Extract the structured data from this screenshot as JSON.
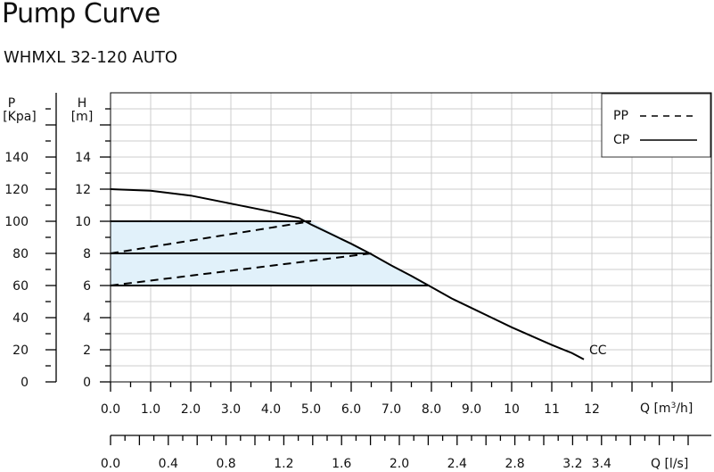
{
  "header": {
    "title": "Pump Curve",
    "subtitle": "WHMXL 32-120 AUTO"
  },
  "colors": {
    "grid": "#cccccc",
    "axis": "#000000",
    "band_fill": "#e1f1fa",
    "curve": "#000000"
  },
  "chart_data": {
    "type": "line",
    "title": "Pump Curve",
    "subtitle": "WHMXL 32-120 AUTO",
    "grid": true,
    "legend_placement": "top-right",
    "axes": {
      "x": {
        "label": "Q [m³/h]",
        "range": [
          0,
          14
        ],
        "ticks": [
          "0.0",
          "1.0",
          "2.0",
          "3.0",
          "4.0",
          "5.0",
          "6.0",
          "7.0",
          "8.0",
          "9.0",
          "10",
          "11",
          "12"
        ]
      },
      "x_secondary": {
        "label": "Q [l/s]",
        "range": [
          0,
          3.8889
        ],
        "ticks": [
          "0.0",
          "0.4",
          "0.8",
          "1.2",
          "1.6",
          "2.0",
          "2.4",
          "2.8",
          "3.2",
          "3.4"
        ]
      },
      "y": {
        "label": "H [m]",
        "range": [
          0,
          18
        ],
        "ticks": [
          "0",
          "2",
          "4",
          "6",
          "8",
          "10",
          "12",
          "14"
        ]
      },
      "y_pressure": {
        "label": "P [Kpa]",
        "range": [
          0,
          180
        ],
        "ticks": [
          "0",
          "20",
          "40",
          "60",
          "80",
          "100",
          "120",
          "140"
        ]
      }
    },
    "legend": [
      {
        "name": "PP",
        "style": "dashed"
      },
      {
        "name": "CP",
        "style": "solid"
      }
    ],
    "series": [
      {
        "name": "CC",
        "style": "solid",
        "x": [
          0,
          1,
          2,
          3,
          4,
          4.7,
          5.0,
          5.5,
          6.0,
          6.5,
          7.0,
          7.5,
          8.0,
          8.5,
          9.0,
          9.5,
          10.0,
          10.5,
          11.0,
          11.5,
          11.8
        ],
        "y": [
          12.0,
          11.9,
          11.6,
          11.1,
          10.6,
          10.2,
          9.8,
          9.2,
          8.6,
          7.95,
          7.25,
          6.6,
          5.9,
          5.2,
          4.6,
          4.0,
          3.4,
          2.85,
          2.3,
          1.8,
          1.4
        ]
      },
      {
        "name": "PP-1",
        "style": "dashed",
        "x": [
          0,
          5.0
        ],
        "y": [
          8.0,
          10.0
        ]
      },
      {
        "name": "PP-2",
        "style": "dashed",
        "x": [
          0,
          6.5
        ],
        "y": [
          6.0,
          8.0
        ]
      },
      {
        "name": "CP-1",
        "style": "solid",
        "x": [
          0,
          5.0
        ],
        "y": [
          10.0,
          10.0
        ]
      },
      {
        "name": "CP-2",
        "style": "solid",
        "x": [
          0,
          6.5
        ],
        "y": [
          8.0,
          8.0
        ]
      },
      {
        "name": "CP-3",
        "style": "solid",
        "x": [
          0,
          7.95
        ],
        "y": [
          6.0,
          6.0
        ]
      }
    ],
    "shaded_region": {
      "x": [
        0,
        5.0,
        6.5,
        7.95,
        0
      ],
      "y": [
        10.0,
        10.0,
        8.0,
        6.0,
        6.0
      ]
    },
    "annotations": [
      {
        "text": "CC",
        "x": 11.9,
        "y": 2.0
      }
    ]
  }
}
